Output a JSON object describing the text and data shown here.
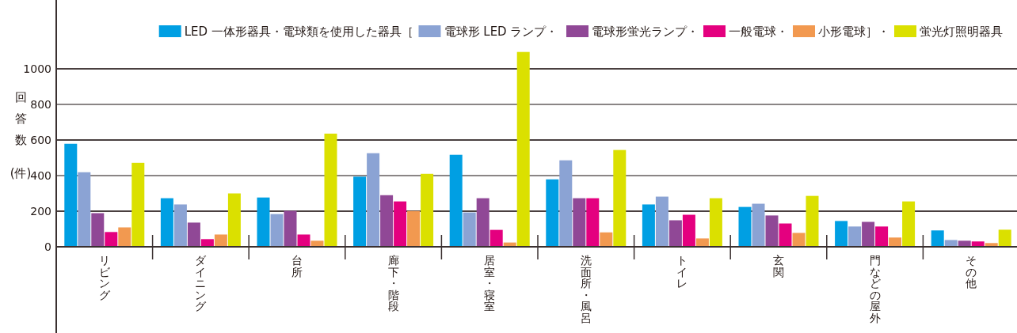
{
  "chart_data": {
    "type": "bar",
    "ylabel": "回答数(件)",
    "categories": [
      "リビング",
      "ダイニング",
      "台所",
      "廊下・階段",
      "居室・寝室",
      "洗面所・風呂",
      "トイレ",
      "玄関",
      "門などの屋外",
      "その他"
    ],
    "series": [
      {
        "name": "LED 一体形器具・電球類を使用した器具［",
        "color": "#009fe3",
        "values": [
          579,
          273,
          277,
          394,
          517,
          379,
          238,
          224,
          145,
          92
        ]
      },
      {
        "name": "電球形 LED ランプ・",
        "color": "#8ba3d4",
        "values": [
          419,
          238,
          184,
          526,
          193,
          486,
          282,
          242,
          114,
          38
        ]
      },
      {
        "name": "電球形蛍光ランプ・",
        "color": "#904896",
        "values": [
          189,
          136,
          202,
          290,
          273,
          273,
          149,
          176,
          140,
          34
        ]
      },
      {
        "name": "一般電球・",
        "color": "#e4007f",
        "values": [
          83,
          43,
          69,
          255,
          95,
          273,
          180,
          131,
          114,
          30
        ]
      },
      {
        "name": "小形電球］・",
        "color": "#f29950",
        "values": [
          109,
          69,
          34,
          201,
          24,
          81,
          47,
          78,
          52,
          21
        ]
      },
      {
        "name": "蛍光灯照明器具",
        "color": "#dbe000",
        "values": [
          472,
          300,
          636,
          410,
          1095,
          544,
          273,
          286,
          255,
          96
        ]
      }
    ],
    "ylim": [
      0,
      1387
    ],
    "yticks": [
      0,
      200,
      400,
      600,
      800,
      1000
    ],
    "grid": "y",
    "legend": "top right"
  }
}
